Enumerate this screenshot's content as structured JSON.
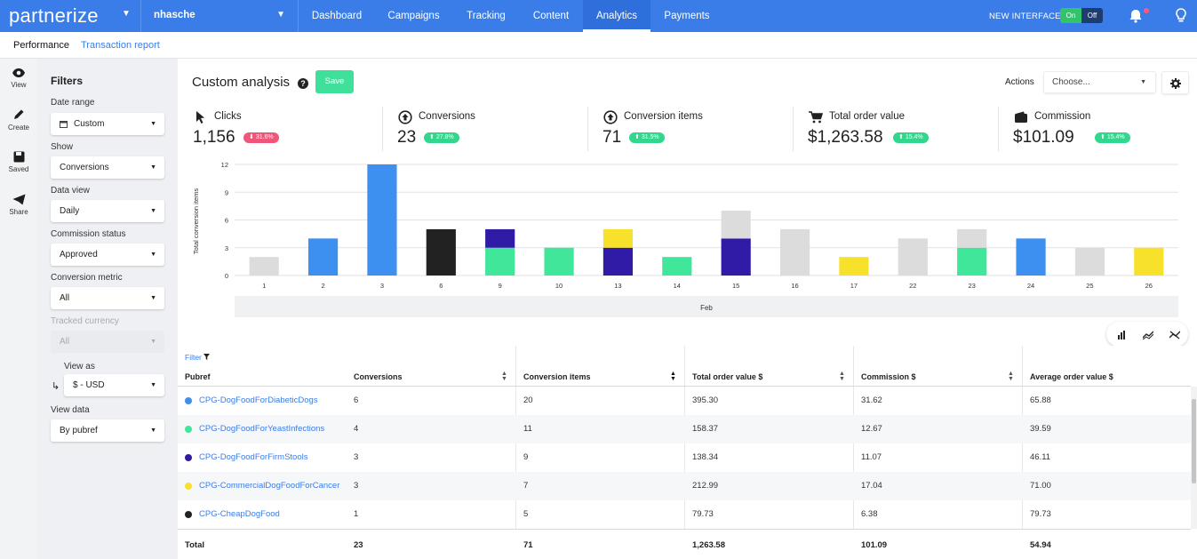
{
  "brand": {
    "logo": "partnerize",
    "account": "nhasche"
  },
  "nav": {
    "items": [
      "Dashboard",
      "Campaigns",
      "Tracking",
      "Content",
      "Analytics",
      "Payments"
    ],
    "active": "Analytics"
  },
  "new_interface": {
    "label": "NEW INTERFACE",
    "on": "On",
    "off": "Off"
  },
  "subnav": {
    "performance": "Performance",
    "transaction_report": "Transaction report"
  },
  "rail": {
    "view": "View",
    "create": "Create",
    "saved": "Saved",
    "share": "Share"
  },
  "filters": {
    "title": "Filters",
    "date_range": {
      "label": "Date range",
      "value": "Custom"
    },
    "show": {
      "label": "Show",
      "value": "Conversions"
    },
    "data_view": {
      "label": "Data view",
      "value": "Daily"
    },
    "commission_status": {
      "label": "Commission status",
      "value": "Approved"
    },
    "conversion_metric": {
      "label": "Conversion metric",
      "value": "All"
    },
    "tracked_currency": {
      "label": "Tracked currency",
      "value": "All"
    },
    "view_as": {
      "label": "View as",
      "value": "$ - USD"
    },
    "view_data": {
      "label": "View data",
      "value": "By pubref"
    }
  },
  "header": {
    "title": "Custom analysis",
    "help": "?",
    "save": "Save",
    "actions_label": "Actions",
    "actions_placeholder": "Choose..."
  },
  "stats": [
    {
      "label": "Clicks",
      "value": "1,156",
      "change": "31.6%",
      "trend": "down",
      "color": "#f0567a"
    },
    {
      "label": "Conversions",
      "value": "23",
      "change": "27.8%",
      "trend": "up",
      "color": "#32d68c"
    },
    {
      "label": "Conversion items",
      "value": "71",
      "change": "31.5%",
      "trend": "up",
      "color": "#32d68c"
    },
    {
      "label": "Total order value",
      "value": "$1,263.58",
      "change": "15.4%",
      "trend": "up",
      "color": "#32d68c"
    },
    {
      "label": "Commission",
      "value": "$101.09",
      "change": "15.4%",
      "trend": "up",
      "color": "#32d68c"
    }
  ],
  "chart_data": {
    "type": "bar",
    "ylabel": "Total conversion items",
    "xlabel": "Feb",
    "ylim": [
      0,
      12
    ],
    "yticks": [
      0,
      3,
      6,
      9,
      12
    ],
    "categories": [
      "1",
      "2",
      "3",
      "6",
      "9",
      "10",
      "13",
      "14",
      "15",
      "16",
      "17",
      "22",
      "23",
      "24",
      "25",
      "26"
    ],
    "stacked": true,
    "series": [
      {
        "color": "#2f1ba6",
        "values": [
          0,
          0,
          0,
          0,
          0,
          0,
          3,
          0,
          4,
          0,
          0,
          0,
          0,
          0,
          0,
          0
        ]
      },
      {
        "color": "#40e69a",
        "values": [
          0,
          0,
          0,
          0,
          3,
          3,
          0,
          2,
          0,
          0,
          0,
          0,
          3,
          0,
          0,
          0
        ]
      },
      {
        "color": "#3d8ff0",
        "values": [
          0,
          4,
          12,
          0,
          0,
          0,
          0,
          0,
          0,
          0,
          0,
          0,
          0,
          4,
          0,
          0
        ]
      },
      {
        "color": "#222222",
        "values": [
          0,
          0,
          0,
          5,
          0,
          0,
          0,
          0,
          0,
          0,
          0,
          0,
          0,
          0,
          0,
          0
        ]
      },
      {
        "color": "#2f1ba6",
        "values": [
          0,
          0,
          0,
          0,
          2,
          0,
          0,
          0,
          0,
          0,
          0,
          0,
          0,
          0,
          0,
          0
        ]
      },
      {
        "color": "#f7e12a",
        "values": [
          0,
          0,
          0,
          0,
          0,
          0,
          2,
          0,
          0,
          0,
          2,
          0,
          0,
          0,
          0,
          3
        ]
      },
      {
        "color": "#dcdcdc",
        "values": [
          2,
          0,
          0,
          0,
          0,
          0,
          0,
          0,
          3,
          5,
          0,
          4,
          2,
          0,
          3,
          0
        ]
      }
    ]
  },
  "table": {
    "filter": "Filter",
    "columns": [
      "Pubref",
      "Conversions",
      "Conversion items",
      "Total order value $",
      "Commission $",
      "Average order value $"
    ],
    "rows": [
      {
        "pubref": "CPG-DogFoodForDiabeticDogs",
        "color": "#3d8ff0",
        "conversions": "6",
        "items": "20",
        "tov": "395.30",
        "commission": "31.62",
        "aov": "65.88"
      },
      {
        "pubref": "CPG-DogFoodForYeastInfections",
        "color": "#40e69a",
        "conversions": "4",
        "items": "11",
        "tov": "158.37",
        "commission": "12.67",
        "aov": "39.59"
      },
      {
        "pubref": "CPG-DogFoodForFirmStools",
        "color": "#2f1ba6",
        "conversions": "3",
        "items": "9",
        "tov": "138.34",
        "commission": "11.07",
        "aov": "46.11"
      },
      {
        "pubref": "CPG-CommercialDogFoodForCancer",
        "color": "#f7e12a",
        "conversions": "3",
        "items": "7",
        "tov": "212.99",
        "commission": "17.04",
        "aov": "71.00"
      },
      {
        "pubref": "CPG-CheapDogFood",
        "color": "#222222",
        "conversions": "1",
        "items": "5",
        "tov": "79.73",
        "commission": "6.38",
        "aov": "79.73"
      }
    ],
    "total": {
      "label": "Total",
      "conversions": "23",
      "items": "71",
      "tov": "1,263.58",
      "commission": "101.09",
      "aov": "54.94"
    }
  }
}
